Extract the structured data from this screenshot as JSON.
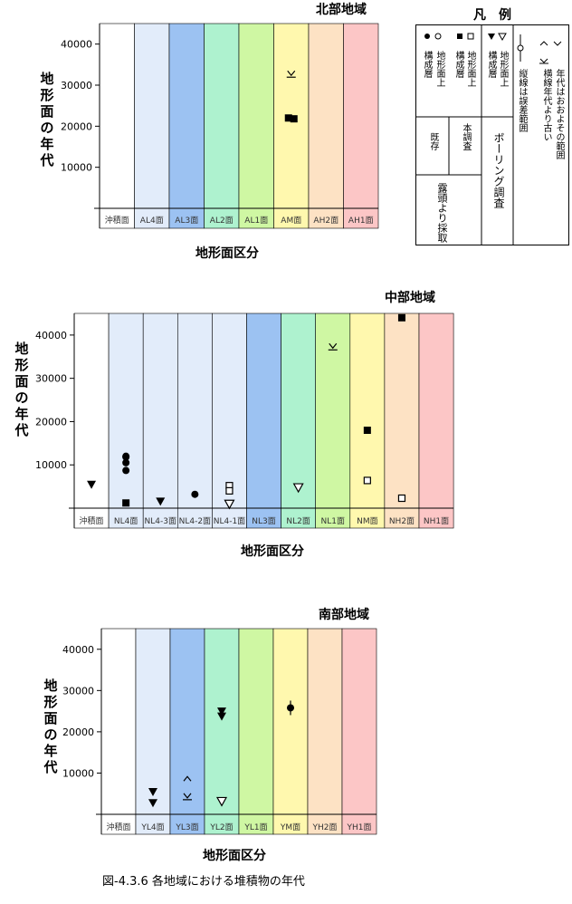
{
  "legend": {
    "title": "凡　例",
    "col_existing_label": "地形面上",
    "col_existing_sub": "構成層",
    "col_survey_label": "地形面上",
    "col_survey_sub": "構成層",
    "col_boring_label": "地形面上",
    "col_boring_sub": "構成層",
    "errorbar_note": "縦線は誤差範囲",
    "arrow_note": "年代はおおよその範囲",
    "arrow_note2": "横線年代より古い",
    "group_existing": "既存",
    "group_survey": "本調査",
    "group_boring": "ボーリング調査",
    "group_outcrop": "露頭より採取"
  },
  "axis_y_label": "地形面の年代",
  "axis_x_label": "地形面区分",
  "caption": "図-4.3.6 各地域における堆積物の年代",
  "colors": {
    "band": [
      "#ffffff",
      "#dde8f8",
      "#8fb8f0",
      "#a8f0cc",
      "#c8f8a0",
      "#fff8a8",
      "#fce0c0",
      "#fcc0c0"
    ]
  },
  "chart_data": [
    {
      "type": "scatter",
      "title": "北部地域",
      "xlabel": "地形面区分",
      "ylabel": "地形面の年代",
      "ylim": [
        0,
        45000
      ],
      "yticks": [
        10000,
        20000,
        30000,
        40000
      ],
      "categories": [
        "沖積面",
        "AL4面",
        "AL3面",
        "AL2面",
        "AL1面",
        "AM面",
        "AH2面",
        "AH1面"
      ],
      "band_colors": [
        "#ffffff",
        "#e2ecfa",
        "#9cc2f2",
        "#aef2cf",
        "#cff7a3",
        "#fff8ae",
        "#fde2c4",
        "#fcc6c6"
      ],
      "series": [
        {
          "marker": "filled-square",
          "points": [
            {
              "cat": "AM面",
              "y": 22000
            },
            {
              "cat": "AM面",
              "y": 21800
            }
          ]
        },
        {
          "marker": "open-v-arrow",
          "points": [
            {
              "cat": "AM面",
              "y": 32600
            }
          ]
        }
      ]
    },
    {
      "type": "scatter",
      "title": "中部地域",
      "xlabel": "地形面区分",
      "ylabel": "地形面の年代",
      "ylim": [
        0,
        45000
      ],
      "yticks": [
        10000,
        20000,
        30000,
        40000
      ],
      "categories": [
        "沖積面",
        "NL4面",
        "NL4-3面",
        "NL4-2面",
        "NL4-1面",
        "NL3面",
        "NL2面",
        "NL1面",
        "NM面",
        "NH2面",
        "NH1面"
      ],
      "band_colors": [
        "#ffffff",
        "#e2ecfa",
        "#e2ecfa",
        "#e2ecfa",
        "#e2ecfa",
        "#9cc2f2",
        "#aef2cf",
        "#cff7a3",
        "#fff8ae",
        "#fde2c4",
        "#fcc6c6"
      ],
      "series": [
        {
          "marker": "filled-triangle",
          "points": [
            {
              "cat": "沖積面",
              "y": 5500
            },
            {
              "cat": "NL4-3面",
              "y": 1600
            }
          ]
        },
        {
          "marker": "filled-circle",
          "points": [
            {
              "cat": "NL4面",
              "y": 12000
            },
            {
              "cat": "NL4面",
              "y": 11800
            },
            {
              "cat": "NL4面",
              "y": 10500
            },
            {
              "cat": "NL4面",
              "y": 8700
            },
            {
              "cat": "NL4-2面",
              "y": 3200
            }
          ]
        },
        {
          "marker": "filled-square",
          "points": [
            {
              "cat": "NL4面",
              "y": 1200
            },
            {
              "cat": "NM面",
              "y": 18000
            },
            {
              "cat": "NH2面",
              "y": 44000
            }
          ]
        },
        {
          "marker": "open-square",
          "points": [
            {
              "cat": "NL4-1面",
              "y": 5200
            },
            {
              "cat": "NL4-1面",
              "y": 4000
            },
            {
              "cat": "NM面",
              "y": 6400
            },
            {
              "cat": "NH2面",
              "y": 2300
            }
          ]
        },
        {
          "marker": "open-triangle",
          "points": [
            {
              "cat": "NL4-1面",
              "y": 1000
            },
            {
              "cat": "NL2面",
              "y": 4800
            }
          ]
        },
        {
          "marker": "open-v-arrow",
          "points": [
            {
              "cat": "NL1面",
              "y": 37200
            }
          ]
        }
      ]
    },
    {
      "type": "scatter",
      "title": "南部地域",
      "xlabel": "地形面区分",
      "ylabel": "地形面の年代",
      "ylim": [
        0,
        45000
      ],
      "yticks": [
        10000,
        20000,
        30000,
        40000
      ],
      "categories": [
        "沖積面",
        "YL4面",
        "YL3面",
        "YL2面",
        "YL1面",
        "YM面",
        "YH2面",
        "YH1面"
      ],
      "band_colors": [
        "#ffffff",
        "#e2ecfa",
        "#9cc2f2",
        "#aef2cf",
        "#cff7a3",
        "#fff8ae",
        "#fde2c4",
        "#fcc6c6"
      ],
      "series": [
        {
          "marker": "filled-triangle",
          "points": [
            {
              "cat": "YL4面",
              "y": 5500
            },
            {
              "cat": "YL4面",
              "y": 2800
            },
            {
              "cat": "YL2面",
              "y": 25000
            },
            {
              "cat": "YL2面",
              "y": 23800
            }
          ]
        },
        {
          "marker": "open-caret-up",
          "points": [
            {
              "cat": "YL3面",
              "y": 8500
            }
          ]
        },
        {
          "marker": "open-v-arrow",
          "points": [
            {
              "cat": "YL3面",
              "y": 4200
            }
          ]
        },
        {
          "marker": "open-triangle",
          "points": [
            {
              "cat": "YL2面",
              "y": 3200
            }
          ]
        },
        {
          "marker": "filled-circle-errorbar",
          "points": [
            {
              "cat": "YM面",
              "y": 25800
            }
          ]
        }
      ]
    }
  ]
}
